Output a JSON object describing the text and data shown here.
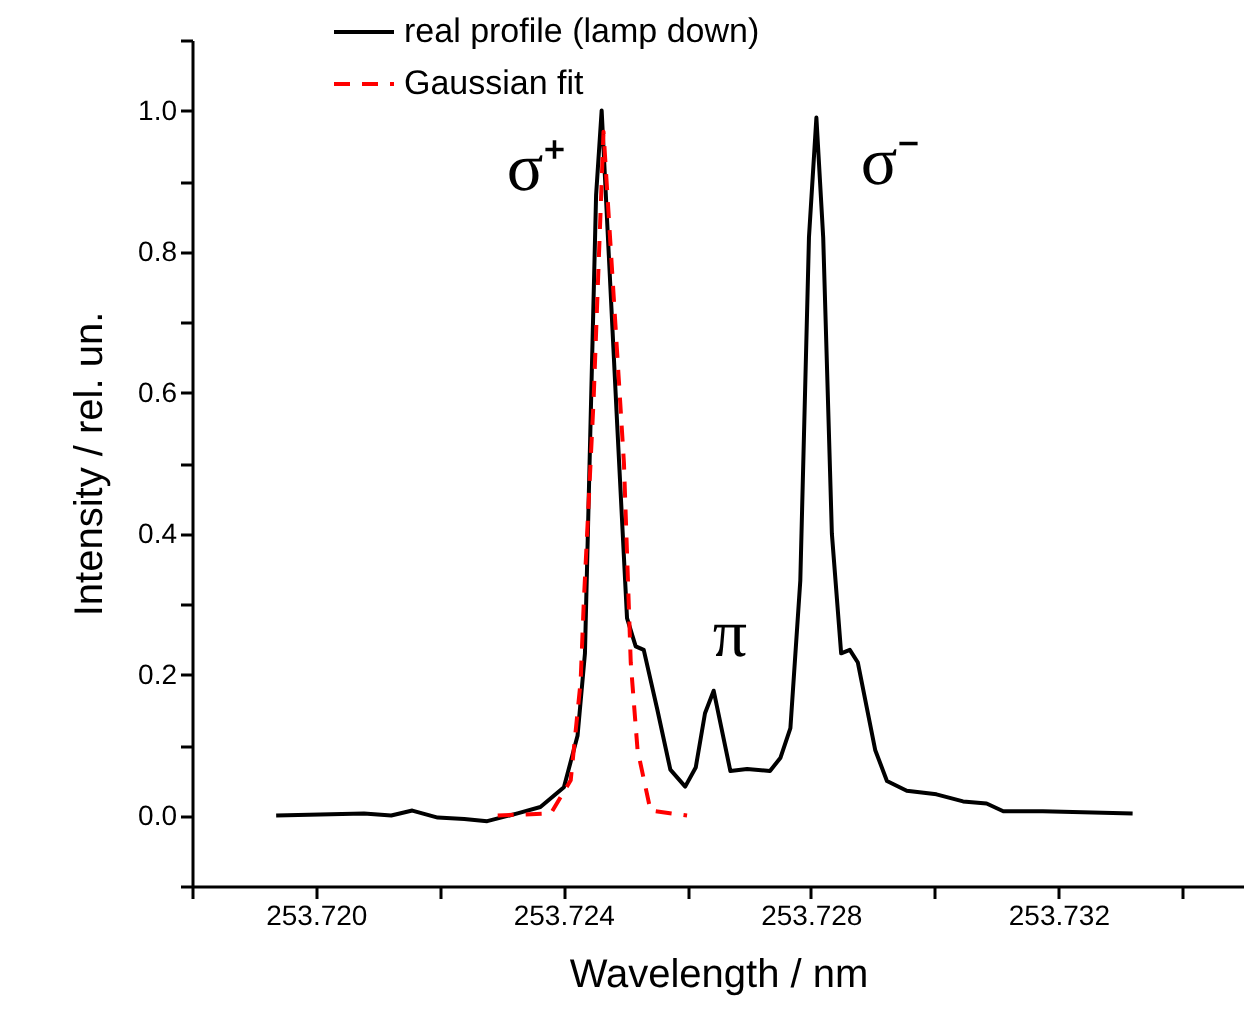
{
  "chart_data": {
    "type": "line",
    "xlabel": "Wavelength / nm",
    "ylabel": "Intensity / rel. un.",
    "xlim": [
      253.718,
      253.735
    ],
    "xticks": [
      {
        "value": 253.718,
        "label": null
      },
      {
        "value": 253.72,
        "label": "253.720"
      },
      {
        "value": 253.722,
        "label": null
      },
      {
        "value": 253.724,
        "label": "253.724"
      },
      {
        "value": 253.726,
        "label": null
      },
      {
        "value": 253.728,
        "label": "253.728"
      },
      {
        "value": 253.73,
        "label": null
      },
      {
        "value": 253.732,
        "label": "253.732"
      },
      {
        "value": 253.734,
        "label": null
      }
    ],
    "ylim": [
      -0.1,
      1.1
    ],
    "yticks": [
      {
        "value": -0.1,
        "label": null
      },
      {
        "value": 0,
        "label": "0.0"
      },
      {
        "value": 0.1,
        "label": null
      },
      {
        "value": 0.2,
        "label": "0.2"
      },
      {
        "value": 0.3,
        "label": null
      },
      {
        "value": 0.4,
        "label": "0.4"
      },
      {
        "value": 0.5,
        "label": null
      },
      {
        "value": 0.6,
        "label": "0.6"
      },
      {
        "value": 0.7,
        "label": null
      },
      {
        "value": 0.8,
        "label": "0.8"
      },
      {
        "value": 0.9,
        "label": null
      },
      {
        "value": 1.0,
        "label": "1.0"
      },
      {
        "value": 1.1,
        "label": null
      }
    ],
    "grid": false,
    "legend": "top",
    "marker": "none",
    "series": [
      {
        "name": "real profile (lamp down)",
        "color": "#000000",
        "type": "line",
        "line_style": "solid",
        "x": [
          253.71936,
          253.72078,
          253.72122,
          253.72156,
          253.72197,
          253.7224,
          253.72277,
          253.72326,
          253.72363,
          253.72401,
          253.72423,
          253.72435,
          253.72453,
          253.72462,
          253.72487,
          253.72503,
          253.72517,
          253.7253,
          253.72552,
          253.72573,
          253.72597,
          253.72614,
          253.72629,
          253.72643,
          253.7267,
          253.72697,
          253.72734,
          253.72751,
          253.72767,
          253.72783,
          253.72797,
          253.72809,
          253.7282,
          253.72834,
          253.72849,
          253.72863,
          253.72876,
          253.72904,
          253.72923,
          253.72955,
          253.73003,
          253.73046,
          253.73084,
          253.73111,
          253.73175,
          253.7332
        ],
        "values": [
          0.0,
          0.003,
          0.0,
          0.007,
          -0.003,
          -0.005,
          -0.008,
          0.003,
          0.012,
          0.04,
          0.113,
          0.23,
          0.88,
          1.0,
          0.556,
          0.28,
          0.24,
          0.235,
          0.15,
          0.065,
          0.041,
          0.068,
          0.145,
          0.177,
          0.063,
          0.066,
          0.063,
          0.082,
          0.124,
          0.333,
          0.82,
          0.99,
          0.82,
          0.4,
          0.23,
          0.235,
          0.217,
          0.093,
          0.049,
          0.035,
          0.03,
          0.02,
          0.017,
          0.006,
          0.006,
          0.003
        ]
      },
      {
        "name": "Gaussian fit",
        "color": "#ff0000",
        "type": "line",
        "line_style": "dashed",
        "x": [
          253.72294,
          253.7238,
          253.72412,
          253.72428,
          253.72433,
          253.72449,
          253.72465,
          253.72498,
          253.72509,
          253.7252,
          253.72541,
          253.726
        ],
        "values": [
          0.0,
          0.003,
          0.05,
          0.19,
          0.3,
          0.59,
          0.97,
          0.5,
          0.217,
          0.093,
          0.007,
          0.0
        ]
      }
    ],
    "annotations": [
      "σ⁺",
      "σ⁻",
      "π"
    ]
  }
}
